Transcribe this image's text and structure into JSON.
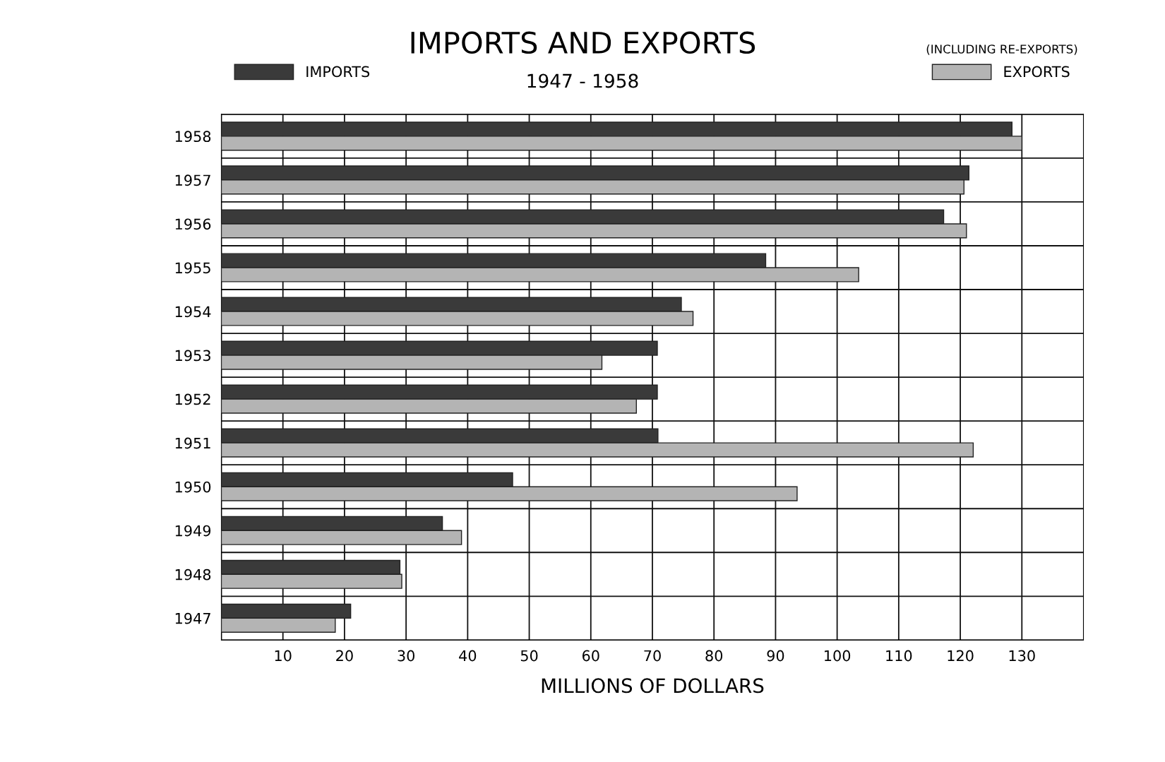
{
  "chart_data": {
    "type": "bar",
    "orientation": "horizontal",
    "title": "IMPORTS AND EXPORTS",
    "subtitle": "1947 - 1958",
    "annotations": [
      "(INCLUDING RE-EXPORTS)"
    ],
    "xlabel": "MILLIONS OF DOLLARS",
    "categories": [
      "1958",
      "1957",
      "1956",
      "1955",
      "1954",
      "1953",
      "1952",
      "1951",
      "1950",
      "1949",
      "1948",
      "1947"
    ],
    "series": [
      {
        "name": "IMPORTS",
        "color": "#3a3a3a",
        "values": [
          128.4,
          121.4,
          117.3,
          88.4,
          74.7,
          70.8,
          70.8,
          70.9,
          47.3,
          35.9,
          29,
          21
        ]
      },
      {
        "name": "EXPORTS",
        "color": "#b4b4b4",
        "values": [
          130,
          120.6,
          121,
          103.5,
          76.6,
          61.8,
          67.4,
          122.1,
          93.5,
          39,
          29.3,
          18.5
        ]
      }
    ],
    "xlim": [
      0,
      140
    ],
    "xticks": [
      10,
      20,
      30,
      40,
      50,
      60,
      70,
      80,
      90,
      100,
      110,
      120,
      130
    ],
    "grid": true,
    "legend": "top"
  }
}
